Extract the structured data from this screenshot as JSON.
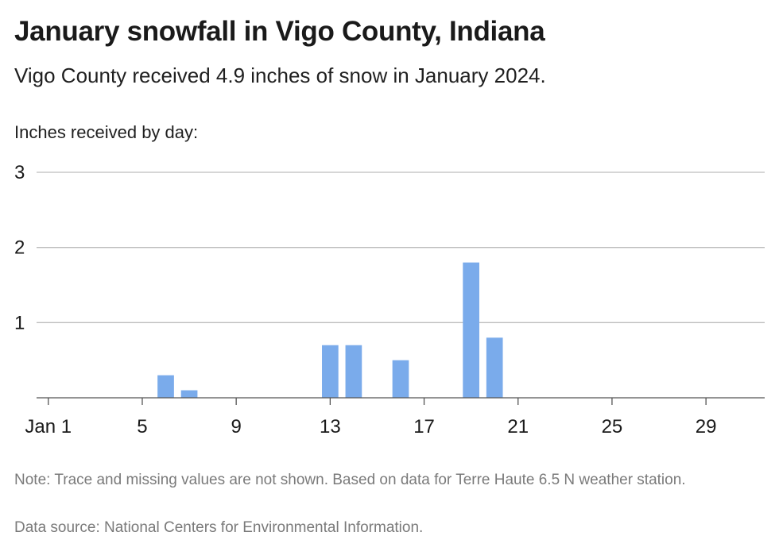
{
  "header": {
    "title": "January snowfall in Vigo County, Indiana",
    "subtitle": "Vigo County received 4.9 inches of snow in January 2024."
  },
  "footer": {
    "note": "Note: Trace and missing values are not shown. Based on data for Terre Haute 6.5 N weather station.",
    "source": "Data source: National Centers for Environmental Information."
  },
  "chart_data": {
    "type": "bar",
    "title": "January snowfall in Vigo County, Indiana",
    "subtitle": "Vigo County received 4.9 inches of snow in January 2024.",
    "ylabel": "Inches received by day:",
    "xlabel": "",
    "x": [
      6,
      7,
      13,
      14,
      16,
      19,
      20
    ],
    "values": [
      0.3,
      0.1,
      0.7,
      0.7,
      0.5,
      1.8,
      0.8
    ],
    "xlim": [
      0.5,
      31.5
    ],
    "ylim": [
      0,
      3
    ],
    "yticks": [
      1,
      2,
      3
    ],
    "xticks": [
      1,
      5,
      9,
      13,
      17,
      21,
      25,
      29
    ],
    "xtick_labels": [
      "Jan 1",
      "5",
      "9",
      "13",
      "17",
      "21",
      "25",
      "29"
    ],
    "bar_color": "#7aabeb",
    "grid": true
  }
}
